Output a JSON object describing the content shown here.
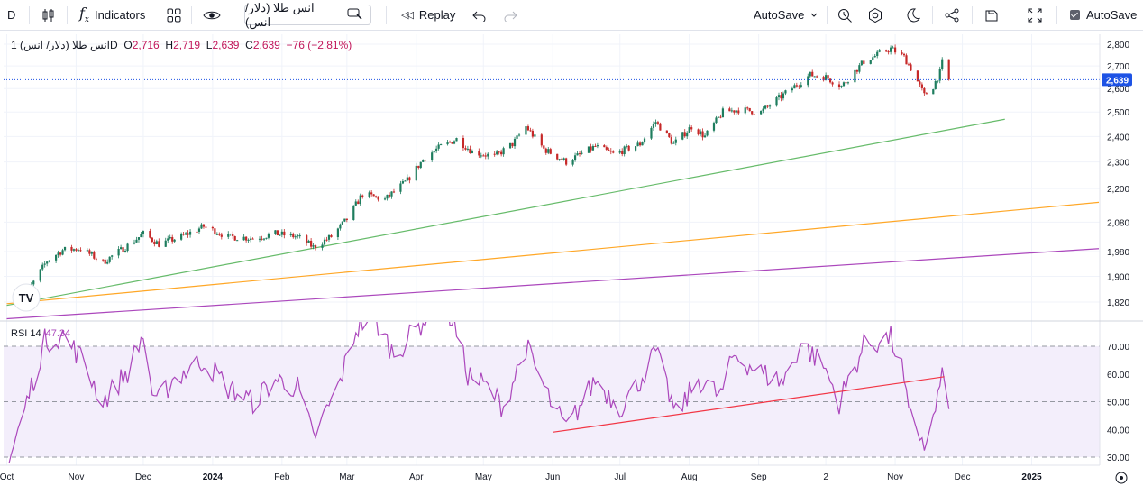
{
  "toolbar": {
    "interval": "D",
    "indicators_label": "Indicators",
    "symbol": "انس طلا (دلار/ انس)",
    "replay_label": "Replay",
    "autosave_dropdown": "AutoSave",
    "autosave_checkbox": "AutoSave"
  },
  "legend": {
    "symbol": "انس طلا (دلار/ انس)",
    "interval": "1D",
    "open_label": "O",
    "open": "2,716",
    "high_label": "H",
    "high": "2,719",
    "low_label": "L",
    "low": "2,639",
    "close_label": "C",
    "close": "2,639",
    "change": "−76 (−2.81%)"
  },
  "rsi_legend": {
    "name": "RSI 14",
    "value": "47.34"
  },
  "colors": {
    "up": "#26a69a",
    "down": "#ef5350",
    "candle_up": "#1e7d5e",
    "candle_down": "#c62828",
    "green_line": "#66bb6a",
    "orange_line": "#ffa726",
    "purple_line": "#ab47bc",
    "rsi_line": "#ab47bc",
    "rsi_band": "#f3eefb",
    "rsi_trend": "#f23645",
    "price_tag": "#1e53e5"
  },
  "chart_data": {
    "type": "candlestick",
    "price_axis": {
      "ticks": [
        1820,
        1900,
        1980,
        2080,
        2200,
        2300,
        2400,
        2500,
        2600,
        2700,
        2800
      ],
      "tick_labels": [
        "1,820",
        "1,900",
        "1,980",
        "2,080",
        "2,200",
        "2,300",
        "2,400",
        "2,500",
        "2,600",
        "2,700",
        "2,800"
      ],
      "scale": "log",
      "last_price": 2639,
      "last_price_label": "2,639"
    },
    "time_axis": {
      "labels": [
        "Oct",
        "Nov",
        "Dec",
        "2024",
        "Feb",
        "Mar",
        "Apr",
        "May",
        "Jun",
        "Jul",
        "Aug",
        "Sep",
        "2",
        "Nov",
        "Dec",
        "2025"
      ],
      "dates": [
        "2023-10-01",
        "2023-11-01",
        "2023-12-01",
        "2024-01-01",
        "2024-02-01",
        "2024-03-01",
        "2024-04-01",
        "2024-05-01",
        "2024-06-01",
        "2024-07-01",
        "2024-08-01",
        "2024-09-01",
        "2024-10-01",
        "2024-11-01",
        "2024-12-01",
        "2025-01-01"
      ]
    },
    "close_path": [
      [
        "2023-10-05",
        1820
      ],
      [
        "2023-10-12",
        1870
      ],
      [
        "2023-10-19",
        1950
      ],
      [
        "2023-10-26",
        1985
      ],
      [
        "2023-11-03",
        1990
      ],
      [
        "2023-11-13",
        1945
      ],
      [
        "2023-11-24",
        2000
      ],
      [
        "2023-12-01",
        2040
      ],
      [
        "2023-12-08",
        2005
      ],
      [
        "2023-12-18",
        2030
      ],
      [
        "2023-12-28",
        2065
      ],
      [
        "2024-01-08",
        2030
      ],
      [
        "2024-01-19",
        2025
      ],
      [
        "2024-01-29",
        2040
      ],
      [
        "2024-02-08",
        2030
      ],
      [
        "2024-02-15",
        1995
      ],
      [
        "2024-02-23",
        2030
      ],
      [
        "2024-03-01",
        2090
      ],
      [
        "2024-03-08",
        2180
      ],
      [
        "2024-03-18",
        2160
      ],
      [
        "2024-03-28",
        2230
      ],
      [
        "2024-04-05",
        2320
      ],
      [
        "2024-04-12",
        2360
      ],
      [
        "2024-04-19",
        2390
      ],
      [
        "2024-04-26",
        2340
      ],
      [
        "2024-05-06",
        2320
      ],
      [
        "2024-05-14",
        2370
      ],
      [
        "2024-05-20",
        2440
      ],
      [
        "2024-05-28",
        2350
      ],
      [
        "2024-06-07",
        2300
      ],
      [
        "2024-06-20",
        2360
      ],
      [
        "2024-06-28",
        2330
      ],
      [
        "2024-07-10",
        2370
      ],
      [
        "2024-07-17",
        2460
      ],
      [
        "2024-07-25",
        2370
      ],
      [
        "2024-08-02",
        2440
      ],
      [
        "2024-08-08",
        2400
      ],
      [
        "2024-08-16",
        2500
      ],
      [
        "2024-08-23",
        2510
      ],
      [
        "2024-09-02",
        2500
      ],
      [
        "2024-09-13",
        2580
      ],
      [
        "2024-09-24",
        2660
      ],
      [
        "2024-10-01",
        2650
      ],
      [
        "2024-10-08",
        2610
      ],
      [
        "2024-10-18",
        2720
      ],
      [
        "2024-10-30",
        2780
      ],
      [
        "2024-11-05",
        2740
      ],
      [
        "2024-11-08",
        2690
      ],
      [
        "2024-11-14",
        2570
      ],
      [
        "2024-11-18",
        2610
      ],
      [
        "2024-11-21",
        2670
      ],
      [
        "2024-11-22",
        2716
      ],
      [
        "2024-11-25",
        2639
      ]
    ],
    "trend_lines": [
      {
        "color": "green",
        "points": [
          [
            "2023-10-01",
            1810
          ],
          [
            "2024-12-20",
            2470
          ]
        ]
      },
      {
        "color": "orange",
        "points": [
          [
            "2023-10-01",
            1815
          ],
          [
            "2025-01-31",
            2150
          ]
        ]
      },
      {
        "color": "purple",
        "points": [
          [
            "2023-10-01",
            1770
          ],
          [
            "2025-01-31",
            1990
          ]
        ]
      }
    ],
    "rsi": {
      "period": 14,
      "ticks": [
        30,
        40,
        50,
        60,
        70
      ],
      "tick_labels": [
        "30.00",
        "40.00",
        "50.00",
        "60.00",
        "70.00"
      ],
      "band": [
        30,
        70
      ],
      "midline": 50,
      "path": [
        [
          "2023-10-02",
          28
        ],
        [
          "2023-10-10",
          50
        ],
        [
          "2023-10-18",
          72
        ],
        [
          "2023-10-26",
          74
        ],
        [
          "2023-11-03",
          66
        ],
        [
          "2023-11-13",
          50
        ],
        [
          "2023-11-24",
          61
        ],
        [
          "2023-12-01",
          74
        ],
        [
          "2023-12-06",
          48
        ],
        [
          "2023-12-14",
          58
        ],
        [
          "2023-12-28",
          65
        ],
        [
          "2024-01-08",
          55
        ],
        [
          "2024-01-19",
          50
        ],
        [
          "2024-01-29",
          58
        ],
        [
          "2024-02-08",
          55
        ],
        [
          "2024-02-15",
          37
        ],
        [
          "2024-02-26",
          55
        ],
        [
          "2024-03-05",
          76
        ],
        [
          "2024-03-12",
          82
        ],
        [
          "2024-03-22",
          67
        ],
        [
          "2024-04-01",
          76
        ],
        [
          "2024-04-10",
          85
        ],
        [
          "2024-04-17",
          80
        ],
        [
          "2024-04-24",
          60
        ],
        [
          "2024-05-03",
          55
        ],
        [
          "2024-05-10",
          48
        ],
        [
          "2024-05-20",
          70
        ],
        [
          "2024-05-31",
          50
        ],
        [
          "2024-06-07",
          40
        ],
        [
          "2024-06-20",
          58
        ],
        [
          "2024-07-01",
          48
        ],
        [
          "2024-07-08",
          55
        ],
        [
          "2024-07-17",
          68
        ],
        [
          "2024-07-26",
          45
        ],
        [
          "2024-08-05",
          58
        ],
        [
          "2024-08-15",
          52
        ],
        [
          "2024-08-21",
          67
        ],
        [
          "2024-09-03",
          60
        ],
        [
          "2024-09-12",
          57
        ],
        [
          "2024-09-20",
          71
        ],
        [
          "2024-09-30",
          63
        ],
        [
          "2024-10-07",
          50
        ],
        [
          "2024-10-18",
          70
        ],
        [
          "2024-10-30",
          73
        ],
        [
          "2024-11-04",
          62
        ],
        [
          "2024-11-07",
          45
        ],
        [
          "2024-11-13",
          37
        ],
        [
          "2024-11-15",
          33
        ],
        [
          "2024-11-21",
          55
        ],
        [
          "2024-11-22",
          58
        ],
        [
          "2024-11-25",
          47.34
        ]
      ],
      "trend_line": [
        [
          "2024-06-01",
          39
        ],
        [
          "2024-11-23",
          59
        ]
      ]
    }
  }
}
